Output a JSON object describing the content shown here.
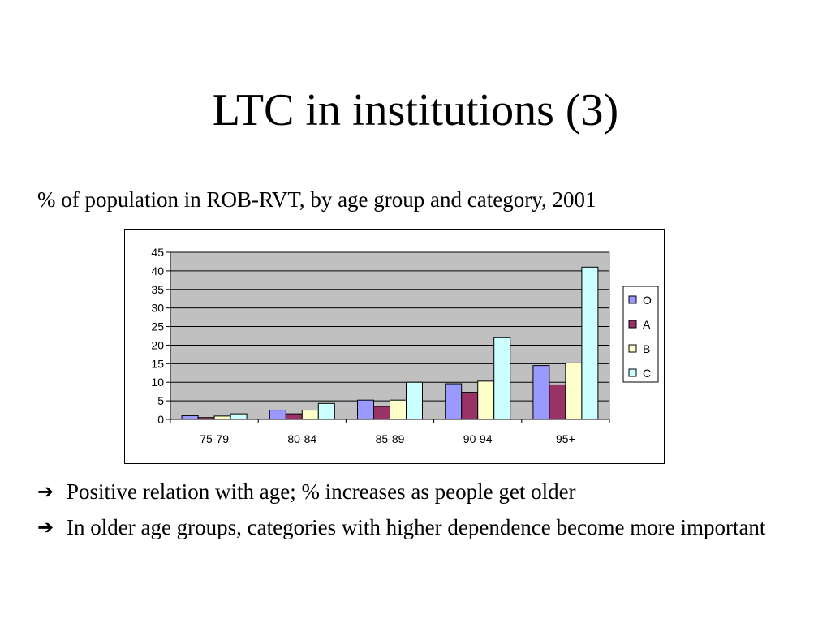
{
  "slide": {
    "title": "LTC in institutions (3)",
    "subtitle": "% of population in ROB-RVT, by age group and category, 2001",
    "bullets": [
      {
        "icon": "arrow-right-icon",
        "text": "Positive relation with age; % increases as people get older"
      },
      {
        "icon": "arrow-right-icon",
        "text": "In older age groups, categories with higher dependence become more important"
      }
    ]
  },
  "chart_data": {
    "type": "bar",
    "title": "",
    "xlabel": "",
    "ylabel": "",
    "categories": [
      "75-79",
      "80-84",
      "85-89",
      "90-94",
      "95+"
    ],
    "series": [
      {
        "name": "O",
        "color": "#9999ff",
        "values": [
          1.0,
          2.5,
          5.2,
          9.6,
          14.5
        ]
      },
      {
        "name": "A",
        "color": "#993366",
        "values": [
          0.5,
          1.5,
          3.5,
          7.3,
          9.3
        ]
      },
      {
        "name": "B",
        "color": "#ffffcc",
        "values": [
          0.9,
          2.5,
          5.2,
          10.3,
          15.2
        ]
      },
      {
        "name": "C",
        "color": "#ccffff",
        "values": [
          1.5,
          4.3,
          10.0,
          22.0,
          41.0
        ]
      }
    ],
    "ylim": [
      0,
      45
    ],
    "yticks": [
      0,
      5,
      10,
      15,
      20,
      25,
      30,
      35,
      40,
      45
    ],
    "grid": true,
    "plot_background": "#c0c0c0",
    "legend": "right"
  }
}
